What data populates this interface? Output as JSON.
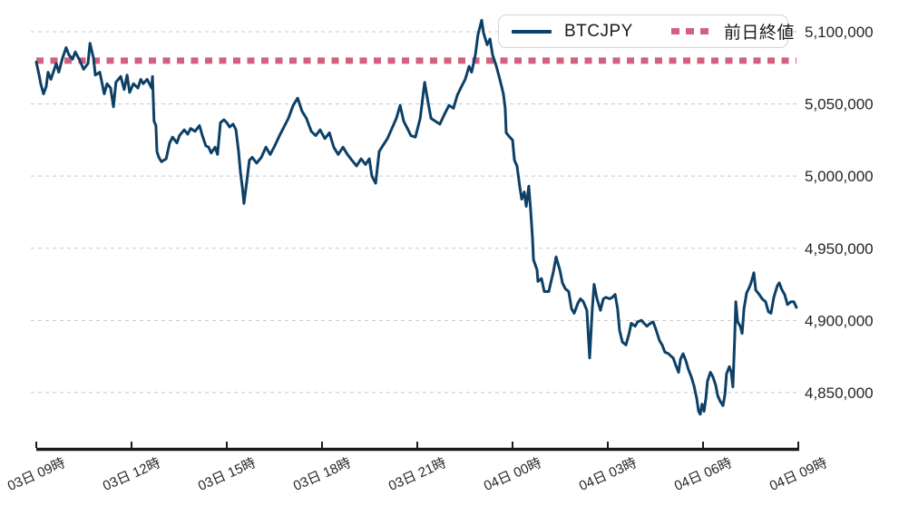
{
  "legend": {
    "series": [
      {
        "label": "BTCJPY"
      },
      {
        "label": "前日終値"
      }
    ]
  },
  "colors": {
    "price_line": "#0d4066",
    "prev_close": "#d2607f",
    "grid": "#c8c8c8",
    "axis": "#1a1a1a",
    "tick_text": "#262626"
  },
  "chart_data": {
    "type": "line",
    "title": "",
    "xlabel": "",
    "ylabel": "",
    "grid": true,
    "legend_position": "top-right",
    "x_unit": "hours from 03日 09時",
    "xlim": [
      0,
      24
    ],
    "ylim": [
      4811000,
      5122000
    ],
    "y_ticks": [
      {
        "value": 5100000,
        "label": "5,100,000"
      },
      {
        "value": 5050000,
        "label": "5,050,000"
      },
      {
        "value": 5000000,
        "label": "5,000,000"
      },
      {
        "value": 4950000,
        "label": "4,950,000"
      },
      {
        "value": 4900000,
        "label": "4,900,000"
      },
      {
        "value": 4850000,
        "label": "4,850,000"
      }
    ],
    "x_ticks": [
      {
        "hour": 0,
        "label": "03日 09時"
      },
      {
        "hour": 3,
        "label": "03日 12時"
      },
      {
        "hour": 6,
        "label": "03日 15時"
      },
      {
        "hour": 9,
        "label": "03日 18時"
      },
      {
        "hour": 12,
        "label": "03日 21時"
      },
      {
        "hour": 15,
        "label": "04日 00時"
      },
      {
        "hour": 18,
        "label": "04日 03時"
      },
      {
        "hour": 21,
        "label": "04日 06時"
      },
      {
        "hour": 24,
        "label": "04日 09時"
      }
    ],
    "prev_close": {
      "name": "前日終値",
      "value": 5080000,
      "style": "dotted"
    },
    "series": [
      {
        "name": "BTCJPY",
        "points": [
          [
            0,
            5079000
          ],
          [
            0.09,
            5070000
          ],
          [
            0.14,
            5064000
          ],
          [
            0.23,
            5057000
          ],
          [
            0.31,
            5062000
          ],
          [
            0.37,
            5072000
          ],
          [
            0.46,
            5067000
          ],
          [
            0.63,
            5078000
          ],
          [
            0.71,
            5072000
          ],
          [
            0.83,
            5082000
          ],
          [
            0.94,
            5089000
          ],
          [
            1.03,
            5084000
          ],
          [
            1.14,
            5081000
          ],
          [
            1.23,
            5086000
          ],
          [
            1.37,
            5080000
          ],
          [
            1.49,
            5074000
          ],
          [
            1.63,
            5078000
          ],
          [
            1.69,
            5092000
          ],
          [
            1.8,
            5082000
          ],
          [
            1.86,
            5070000
          ],
          [
            2,
            5072000
          ],
          [
            2.14,
            5057000
          ],
          [
            2.23,
            5064000
          ],
          [
            2.34,
            5061000
          ],
          [
            2.43,
            5048000
          ],
          [
            2.51,
            5065000
          ],
          [
            2.66,
            5069000
          ],
          [
            2.77,
            5060000
          ],
          [
            2.86,
            5070000
          ],
          [
            2.94,
            5058000
          ],
          [
            3.06,
            5064000
          ],
          [
            3.2,
            5061000
          ],
          [
            3.29,
            5067000
          ],
          [
            3.37,
            5064000
          ],
          [
            3.49,
            5067000
          ],
          [
            3.63,
            5061000
          ],
          [
            3.66,
            5069000
          ],
          [
            3.71,
            5038000
          ],
          [
            3.77,
            5035000
          ],
          [
            3.8,
            5017000
          ],
          [
            3.86,
            5013000
          ],
          [
            3.94,
            5010000
          ],
          [
            4.09,
            5012000
          ],
          [
            4.2,
            5023000
          ],
          [
            4.29,
            5027000
          ],
          [
            4.43,
            5023000
          ],
          [
            4.51,
            5028000
          ],
          [
            4.66,
            5032000
          ],
          [
            4.77,
            5029000
          ],
          [
            4.86,
            5033000
          ],
          [
            5,
            5031000
          ],
          [
            5.14,
            5035000
          ],
          [
            5.23,
            5028000
          ],
          [
            5.34,
            5021000
          ],
          [
            5.43,
            5020000
          ],
          [
            5.51,
            5016000
          ],
          [
            5.63,
            5020000
          ],
          [
            5.71,
            5015000
          ],
          [
            5.8,
            5037000
          ],
          [
            5.91,
            5039000
          ],
          [
            6,
            5037000
          ],
          [
            6.09,
            5034000
          ],
          [
            6.2,
            5036000
          ],
          [
            6.29,
            5032000
          ],
          [
            6.37,
            5017000
          ],
          [
            6.43,
            5003000
          ],
          [
            6.49,
            4992000
          ],
          [
            6.54,
            4981000
          ],
          [
            6.63,
            4996000
          ],
          [
            6.71,
            5011000
          ],
          [
            6.8,
            5013000
          ],
          [
            6.94,
            5009000
          ],
          [
            7.09,
            5013000
          ],
          [
            7.23,
            5020000
          ],
          [
            7.37,
            5015000
          ],
          [
            7.51,
            5021000
          ],
          [
            7.66,
            5028000
          ],
          [
            7.8,
            5034000
          ],
          [
            7.94,
            5040000
          ],
          [
            8.09,
            5049000
          ],
          [
            8.23,
            5054000
          ],
          [
            8.37,
            5045000
          ],
          [
            8.51,
            5040000
          ],
          [
            8.66,
            5031000
          ],
          [
            8.8,
            5028000
          ],
          [
            8.94,
            5032000
          ],
          [
            9.09,
            5026000
          ],
          [
            9.23,
            5030000
          ],
          [
            9.37,
            5020000
          ],
          [
            9.51,
            5015000
          ],
          [
            9.66,
            5020000
          ],
          [
            9.8,
            5015000
          ],
          [
            9.94,
            5011000
          ],
          [
            10.09,
            5007000
          ],
          [
            10.23,
            5012000
          ],
          [
            10.37,
            5008000
          ],
          [
            10.49,
            5012000
          ],
          [
            10.57,
            5000000
          ],
          [
            10.69,
            4995000
          ],
          [
            10.8,
            5017000
          ],
          [
            10.91,
            5021000
          ],
          [
            11.06,
            5026000
          ],
          [
            11.2,
            5033000
          ],
          [
            11.34,
            5040000
          ],
          [
            11.46,
            5049000
          ],
          [
            11.57,
            5038000
          ],
          [
            11.71,
            5032000
          ],
          [
            11.8,
            5028000
          ],
          [
            11.94,
            5027000
          ],
          [
            12.09,
            5040000
          ],
          [
            12.23,
            5065000
          ],
          [
            12.34,
            5051000
          ],
          [
            12.43,
            5040000
          ],
          [
            12.57,
            5038000
          ],
          [
            12.71,
            5036000
          ],
          [
            12.86,
            5043000
          ],
          [
            13,
            5049000
          ],
          [
            13.14,
            5047000
          ],
          [
            13.26,
            5056000
          ],
          [
            13.37,
            5061000
          ],
          [
            13.51,
            5067000
          ],
          [
            13.63,
            5076000
          ],
          [
            13.71,
            5072000
          ],
          [
            13.83,
            5084000
          ],
          [
            13.91,
            5098000
          ],
          [
            14.03,
            5108000
          ],
          [
            14.09,
            5099000
          ],
          [
            14.2,
            5091000
          ],
          [
            14.29,
            5095000
          ],
          [
            14.37,
            5084000
          ],
          [
            14.49,
            5076000
          ],
          [
            14.6,
            5067000
          ],
          [
            14.71,
            5057000
          ],
          [
            14.77,
            5047000
          ],
          [
            14.8,
            5030000
          ],
          [
            14.91,
            5027000
          ],
          [
            15,
            5025000
          ],
          [
            15.06,
            5011000
          ],
          [
            15.14,
            5007000
          ],
          [
            15.23,
            4992000
          ],
          [
            15.29,
            4984000
          ],
          [
            15.37,
            4989000
          ],
          [
            15.43,
            4979000
          ],
          [
            15.51,
            4993000
          ],
          [
            15.57,
            4976000
          ],
          [
            15.63,
            4957000
          ],
          [
            15.66,
            4942000
          ],
          [
            15.77,
            4935000
          ],
          [
            15.8,
            4927000
          ],
          [
            15.91,
            4929000
          ],
          [
            16,
            4920000
          ],
          [
            16.14,
            4920000
          ],
          [
            16.29,
            4934000
          ],
          [
            16.37,
            4944000
          ],
          [
            16.49,
            4935000
          ],
          [
            16.57,
            4926000
          ],
          [
            16.66,
            4922000
          ],
          [
            16.77,
            4920000
          ],
          [
            16.86,
            4908000
          ],
          [
            16.94,
            4905000
          ],
          [
            17.06,
            4912000
          ],
          [
            17.14,
            4915000
          ],
          [
            17.23,
            4913000
          ],
          [
            17.34,
            4907000
          ],
          [
            17.43,
            4874000
          ],
          [
            17.51,
            4908000
          ],
          [
            17.57,
            4925000
          ],
          [
            17.66,
            4915000
          ],
          [
            17.77,
            4907000
          ],
          [
            17.86,
            4915000
          ],
          [
            17.94,
            4916000
          ],
          [
            18.06,
            4915000
          ],
          [
            18.14,
            4916000
          ],
          [
            18.23,
            4918000
          ],
          [
            18.31,
            4908000
          ],
          [
            18.37,
            4893000
          ],
          [
            18.46,
            4885000
          ],
          [
            18.57,
            4883000
          ],
          [
            18.66,
            4890000
          ],
          [
            18.74,
            4898000
          ],
          [
            18.86,
            4896000
          ],
          [
            18.94,
            4899000
          ],
          [
            19.06,
            4900000
          ],
          [
            19.14,
            4898000
          ],
          [
            19.23,
            4896000
          ],
          [
            19.34,
            4898000
          ],
          [
            19.43,
            4899000
          ],
          [
            19.51,
            4894000
          ],
          [
            19.63,
            4886000
          ],
          [
            19.71,
            4883000
          ],
          [
            19.8,
            4878000
          ],
          [
            19.91,
            4877000
          ],
          [
            20,
            4875000
          ],
          [
            20.06,
            4874000
          ],
          [
            20.14,
            4869000
          ],
          [
            20.23,
            4864000
          ],
          [
            20.29,
            4873000
          ],
          [
            20.37,
            4877000
          ],
          [
            20.46,
            4872000
          ],
          [
            20.54,
            4866000
          ],
          [
            20.63,
            4861000
          ],
          [
            20.71,
            4855000
          ],
          [
            20.8,
            4846000
          ],
          [
            20.86,
            4837000
          ],
          [
            20.91,
            4835000
          ],
          [
            20.97,
            4842000
          ],
          [
            21.03,
            4837000
          ],
          [
            21.09,
            4846000
          ],
          [
            21.14,
            4858000
          ],
          [
            21.23,
            4864000
          ],
          [
            21.31,
            4861000
          ],
          [
            21.4,
            4855000
          ],
          [
            21.46,
            4848000
          ],
          [
            21.54,
            4844000
          ],
          [
            21.63,
            4841000
          ],
          [
            21.69,
            4849000
          ],
          [
            21.74,
            4863000
          ],
          [
            21.83,
            4868000
          ],
          [
            21.89,
            4864000
          ],
          [
            21.94,
            4854000
          ],
          [
            22,
            4890000
          ],
          [
            22.03,
            4913000
          ],
          [
            22.09,
            4899000
          ],
          [
            22.17,
            4896000
          ],
          [
            22.23,
            4891000
          ],
          [
            22.29,
            4908000
          ],
          [
            22.37,
            4919000
          ],
          [
            22.46,
            4923000
          ],
          [
            22.51,
            4926000
          ],
          [
            22.6,
            4933000
          ],
          [
            22.66,
            4921000
          ],
          [
            22.77,
            4918000
          ],
          [
            22.86,
            4915000
          ],
          [
            22.97,
            4913000
          ],
          [
            23.06,
            4906000
          ],
          [
            23.14,
            4905000
          ],
          [
            23.23,
            4916000
          ],
          [
            23.34,
            4924000
          ],
          [
            23.4,
            4926000
          ],
          [
            23.49,
            4921000
          ],
          [
            23.57,
            4918000
          ],
          [
            23.66,
            4911000
          ],
          [
            23.77,
            4913000
          ],
          [
            23.86,
            4913000
          ],
          [
            23.94,
            4909000
          ]
        ]
      }
    ]
  }
}
